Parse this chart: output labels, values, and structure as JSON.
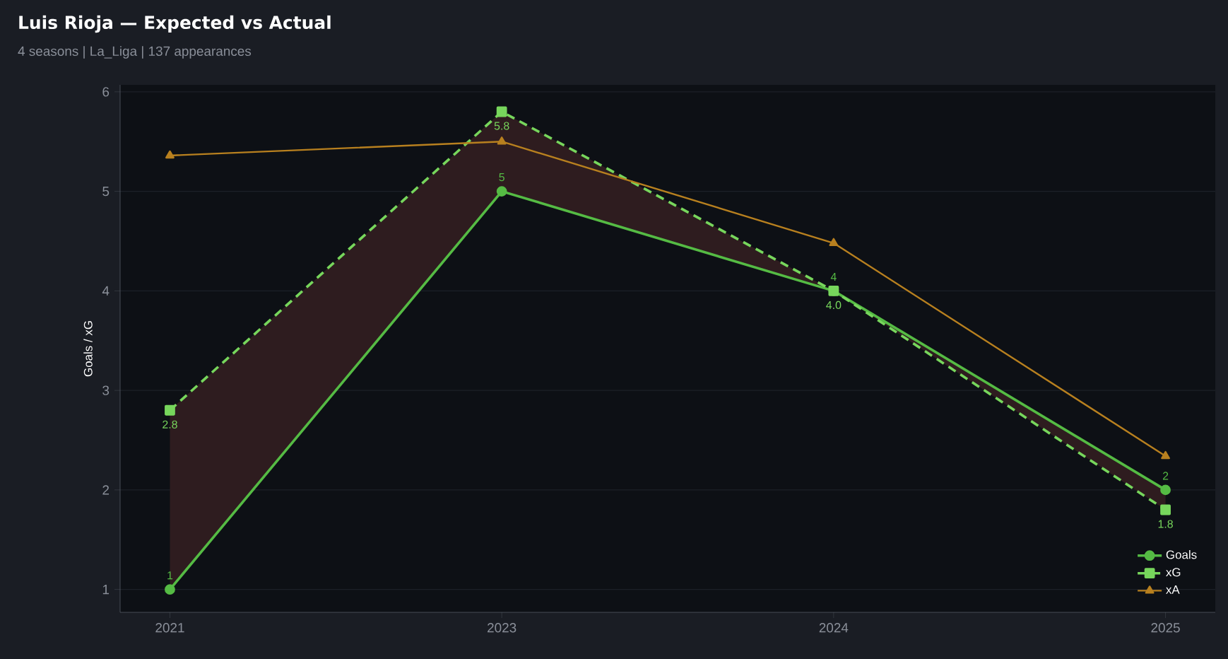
{
  "chart_data": {
    "type": "line",
    "title": "Luis Rioja — Expected vs Actual",
    "subtitle": "4 seasons | La_Liga | 137 appearances",
    "ylabel": "Goals / xG",
    "categories": [
      "2021",
      "2023",
      "2024",
      "2025"
    ],
    "series": [
      {
        "name": "Goals",
        "color": "#55bb44",
        "values": [
          1,
          5,
          4,
          2
        ],
        "marker": "circle",
        "line_style": "solid",
        "value_labels": [
          "1",
          "5",
          "4",
          "2"
        ]
      },
      {
        "name": "xG",
        "color": "#77d65c",
        "values": [
          2.8,
          5.8,
          4.0,
          1.8
        ],
        "marker": "square",
        "line_style": "dashed",
        "value_labels": [
          "2.8",
          "5.8",
          "4.0",
          "1.8"
        ],
        "lower": [
          1,
          5,
          4,
          2
        ],
        "upper": [
          2.8,
          5.8,
          4.0,
          1.8
        ]
      },
      {
        "name": "xA",
        "color": "#b8801f",
        "values": [
          5.36,
          5.5,
          4.48,
          2.34
        ],
        "marker": "triangle",
        "line_style": "solid"
      }
    ],
    "ylim": [
      0.77,
      6.07
    ],
    "yticks": [
      1,
      2,
      3,
      4,
      5,
      6
    ],
    "grid": "y",
    "legend": "bottom right"
  }
}
